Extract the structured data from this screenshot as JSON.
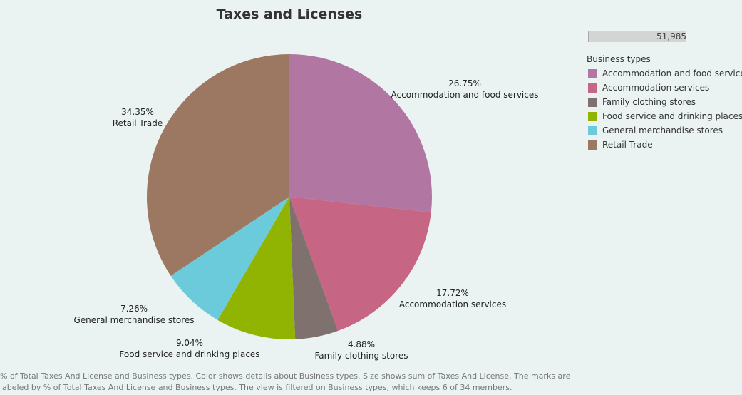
{
  "chart_data": {
    "type": "pie",
    "title": "Taxes and Licenses",
    "slices": [
      {
        "label": "Accommodation and food services",
        "value": 26.75,
        "value_label": "26.75%",
        "color": "#b176a2"
      },
      {
        "label": "Accommodation services",
        "value": 17.72,
        "value_label": "17.72%",
        "color": "#c66584"
      },
      {
        "label": "Family clothing stores",
        "value": 4.88,
        "value_label": "4.88%",
        "color": "#7e716e"
      },
      {
        "label": "Food service and drinking places",
        "value": 9.04,
        "value_label": "9.04%",
        "color": "#91b301"
      },
      {
        "label": "General merchandise stores",
        "value": 7.26,
        "value_label": "7.26%",
        "color": "#6bcbda"
      },
      {
        "label": "Retail Trade",
        "value": 34.35,
        "value_label": "34.35%",
        "color": "#9c7761"
      }
    ],
    "legend": {
      "title": "Business types",
      "placement": "right",
      "items": [
        "Accommodation and food services",
        "Accommodation services",
        "Family clothing stores",
        "Food service and drinking places",
        "General merchandise stores",
        "Retail Trade"
      ]
    }
  },
  "filter_slider": {
    "value": "51,985"
  },
  "footnote": "% of Total Taxes And License and Business types.  Color shows details about Business types.  Size shows sum of Taxes And License.  The marks are labeled by % of Total Taxes And License and Business types. The view is filtered on Business types, which keeps 6 of 34 members."
}
